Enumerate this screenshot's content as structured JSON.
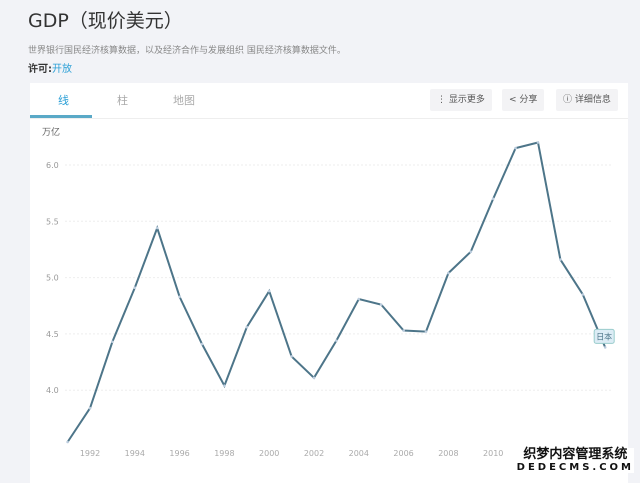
{
  "header": {
    "title": "GDP（现价美元）",
    "source": "世界银行国民经济核算数据，以及经济合作与发展组织 国民经济核算数据文件。",
    "license_label": "许可:",
    "license_value": "开放"
  },
  "tabs": [
    {
      "label": "线",
      "active": true
    },
    {
      "label": "柱"
    },
    {
      "label": "地图"
    }
  ],
  "toolbar": {
    "more": "显示更多",
    "share": "分享",
    "details": "详细信息",
    "more_icon": "vertical-dots-icon",
    "share_icon": "share-icon",
    "details_icon": "info-icon"
  },
  "watermark": {
    "line1": "织梦内容管理系统",
    "line2": "DEDECMS.COM"
  },
  "chart_data": {
    "type": "line",
    "ylabel": "万亿",
    "ylim": [
      3.5,
      6.25
    ],
    "yticks": [
      "4.0",
      "4.5",
      "5.0",
      "5.5",
      "6.0"
    ],
    "xticks": [
      "1992",
      "1994",
      "1996",
      "1998",
      "2000",
      "2002",
      "2004",
      "2006",
      "2008",
      "2010"
    ],
    "grid": true,
    "line_color": "#4d7589",
    "series": [
      {
        "name": "日本",
        "x": [
          1991,
          1992,
          1993,
          1994,
          1995,
          1996,
          1997,
          1998,
          1999,
          2000,
          2001,
          2002,
          2003,
          2004,
          2005,
          2006,
          2007,
          2008,
          2009,
          2010,
          2011,
          2012,
          2013,
          2014,
          2015
        ],
        "values": [
          3.54,
          3.84,
          4.43,
          4.91,
          5.44,
          4.83,
          4.41,
          4.04,
          4.56,
          4.88,
          4.3,
          4.11,
          4.44,
          4.81,
          4.76,
          4.53,
          4.52,
          5.04,
          5.23,
          5.7,
          6.15,
          6.2,
          5.16,
          4.85,
          4.38
        ]
      }
    ]
  }
}
